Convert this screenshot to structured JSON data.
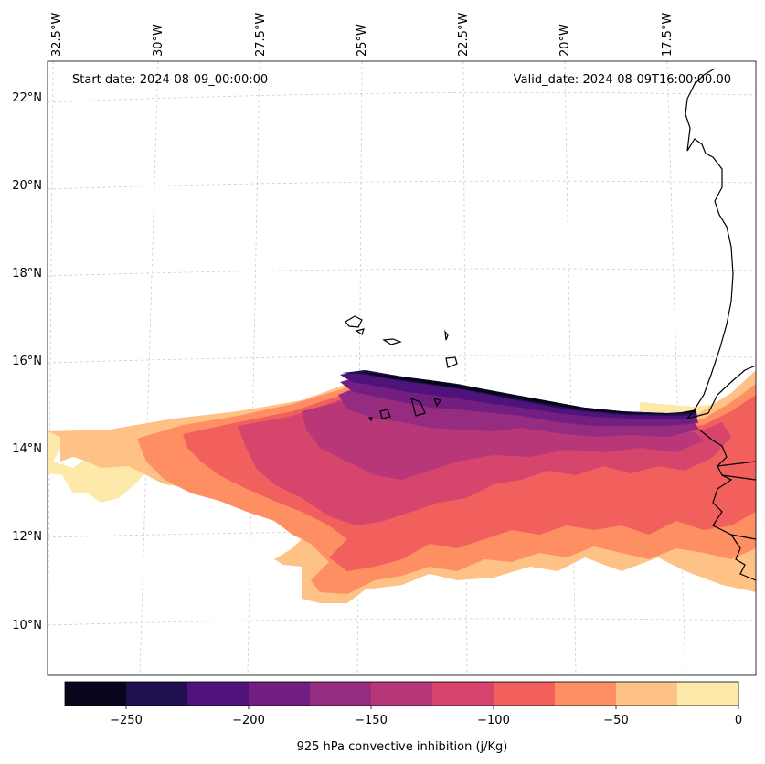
{
  "header": {
    "start_date": "Start date: 2024-08-09_00:00:00",
    "valid_date": "Valid_date: 2024-08-09T16:00:00.00"
  },
  "axes": {
    "lon_labels": [
      "32.5°W",
      "30°W",
      "27.5°W",
      "25°W",
      "22.5°W",
      "20°W",
      "17.5°W"
    ],
    "lat_labels": [
      "22°N",
      "20°N",
      "18°N",
      "16°N",
      "14°N",
      "12°N",
      "10°N"
    ]
  },
  "colorbar": {
    "label": "925 hPa convective inhibition (j/Kg)",
    "ticks": [
      "−250",
      "−200",
      "−150",
      "−100",
      "−50",
      "0"
    ],
    "colors": [
      "#07061c",
      "#221150",
      "#4f137b",
      "#731f81",
      "#952c80",
      "#b73779",
      "#d6456c",
      "#f1605d",
      "#fd8f63",
      "#fec287",
      "#fde9a9"
    ]
  },
  "map": {
    "field": "925 hPa convective inhibition",
    "units": "j/Kg",
    "coastline_color": "#000000",
    "grid_color": "#cccccc"
  }
}
